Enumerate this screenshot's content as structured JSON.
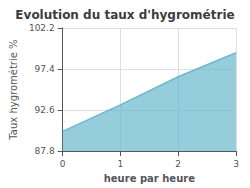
{
  "chart_data": {
    "type": "area",
    "title": "Evolution du taux d'hygrométrie",
    "xlabel": "heure par heure",
    "ylabel": "Taux hygrométrie %",
    "x": [
      0,
      1,
      2,
      3
    ],
    "values": [
      90.1,
      93.2,
      96.5,
      99.3
    ],
    "baseline": 87.8,
    "color": "#6ab8cc",
    "xlim": [
      0,
      3
    ],
    "xticks": [
      0,
      1,
      2,
      3
    ],
    "ylim": [
      87.8,
      102.2
    ],
    "yticks": [
      87.8,
      92.6,
      97.4,
      102.2
    ],
    "grid": true
  }
}
